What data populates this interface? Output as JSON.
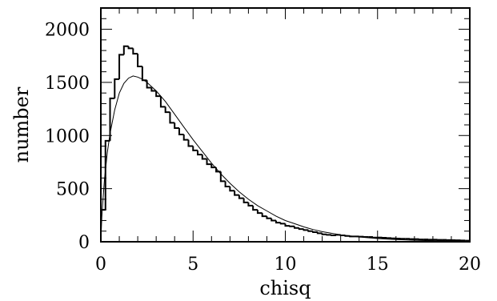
{
  "chart_data": {
    "type": "histogram+line",
    "title": "",
    "xlabel": "chisq",
    "ylabel": "number",
    "xlim": [
      0,
      20
    ],
    "ylim": [
      0,
      2200
    ],
    "x_ticks": [
      0,
      5,
      10,
      15,
      20
    ],
    "x_tick_labels": [
      "0",
      "5",
      "10",
      "15",
      "20"
    ],
    "y_ticks": [
      0,
      500,
      1000,
      1500,
      2000
    ],
    "y_tick_labels": [
      "0",
      "500",
      "1000",
      "1500",
      "2000"
    ],
    "grid": false,
    "series": [
      {
        "kind": "histogram",
        "bin_width": 0.25,
        "x_start": 0,
        "values": [
          300,
          950,
          1350,
          1530,
          1760,
          1840,
          1820,
          1770,
          1650,
          1520,
          1450,
          1420,
          1370,
          1270,
          1220,
          1120,
          1070,
          1010,
          960,
          900,
          860,
          820,
          780,
          730,
          700,
          660,
          570,
          520,
          480,
          440,
          410,
          370,
          340,
          300,
          270,
          240,
          220,
          200,
          180,
          170,
          150,
          145,
          130,
          120,
          110,
          100,
          90,
          80,
          70,
          65,
          60,
          65,
          60,
          55,
          50,
          50,
          48,
          45,
          45,
          40,
          40,
          38,
          35,
          32,
          30,
          28,
          28,
          25,
          25,
          22,
          22,
          20,
          20,
          18,
          18,
          16,
          15,
          14,
          12,
          10
        ]
      },
      {
        "kind": "line",
        "x": [
          0,
          0.05,
          0.1,
          0.2,
          0.35,
          0.5,
          0.75,
          1,
          1.25,
          1.5,
          1.75,
          2,
          2.25,
          2.5,
          3,
          3.5,
          4,
          4.5,
          5,
          5.5,
          6,
          6.5,
          7,
          7.5,
          8,
          8.5,
          9,
          9.5,
          10,
          10.5,
          11,
          11.5,
          12,
          13,
          14,
          15,
          16,
          17,
          18,
          19,
          20
        ],
        "y": [
          0,
          230,
          360,
          590,
          840,
          1020,
          1240,
          1400,
          1490,
          1540,
          1560,
          1550,
          1530,
          1500,
          1420,
          1320,
          1200,
          1080,
          960,
          850,
          740,
          640,
          550,
          470,
          400,
          340,
          290,
          240,
          200,
          170,
          140,
          115,
          95,
          65,
          45,
          30,
          20,
          14,
          9,
          6,
          4
        ]
      }
    ]
  }
}
